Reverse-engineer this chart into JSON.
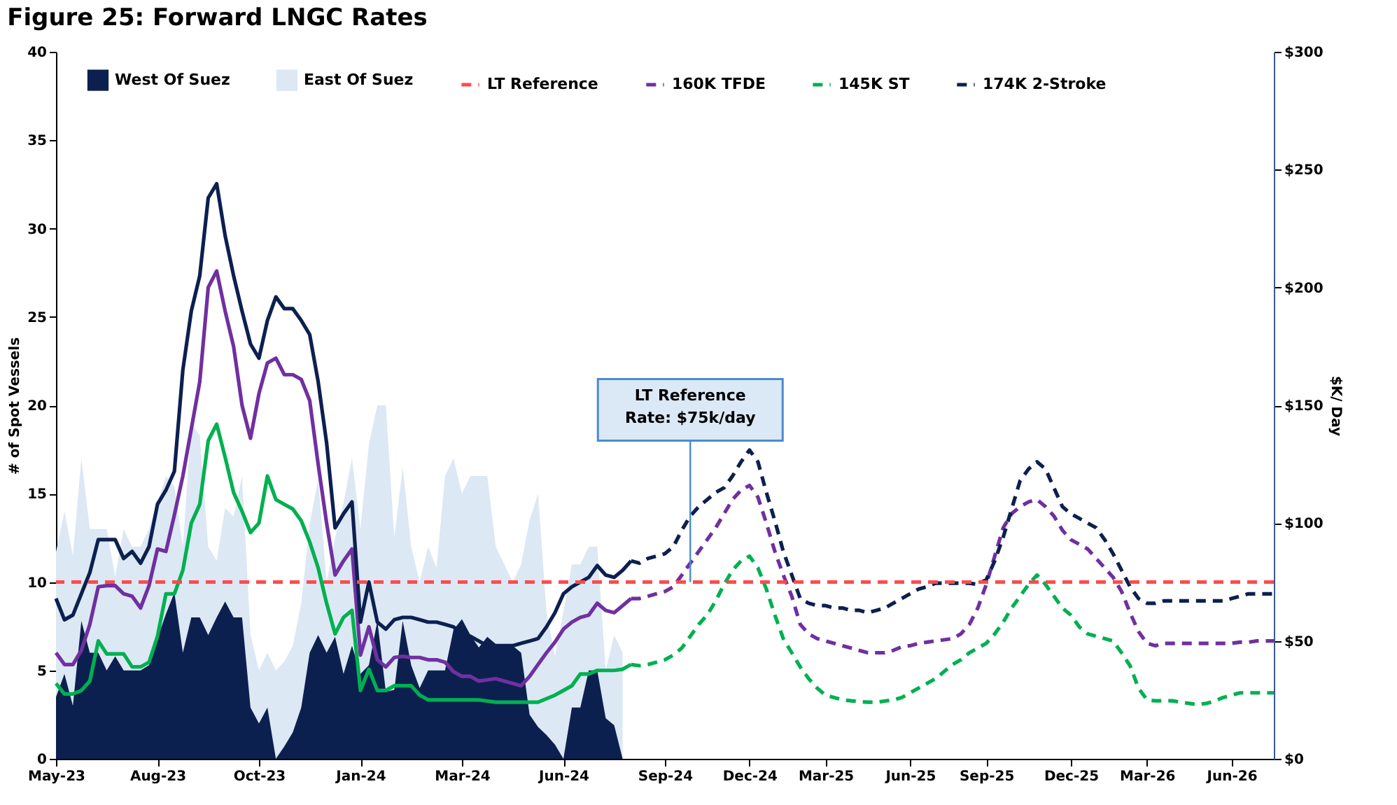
{
  "chart_data": {
    "type": "line",
    "title": "Figure 25: Forward LNGC Rates",
    "ylabel": "# of Spot Vessels",
    "y2label": "$K/ Day",
    "categories": [
      "May-23",
      null,
      null,
      null,
      null,
      null,
      null,
      null,
      null,
      null,
      null,
      null,
      "Aug-23",
      null,
      null,
      null,
      null,
      null,
      null,
      null,
      null,
      null,
      null,
      null,
      "Oct-23",
      null,
      null,
      null,
      null,
      null,
      null,
      null,
      null,
      null,
      null,
      null,
      "Jan-24",
      null,
      null,
      null,
      null,
      null,
      null,
      null,
      null,
      null,
      null,
      null,
      "Mar-24",
      null,
      null,
      null,
      null,
      null,
      null,
      null,
      null,
      null,
      null,
      null,
      "Jun-24",
      null,
      null,
      null,
      null,
      null,
      null,
      null,
      null,
      null,
      null,
      null,
      "Sep-24",
      null,
      null,
      null,
      null,
      null,
      null,
      null,
      null,
      null,
      "Dec-24",
      null,
      null,
      null,
      null,
      null,
      null,
      null,
      null,
      "Mar-25",
      null,
      null,
      null,
      null,
      null,
      null,
      null,
      null,
      null,
      "Jun-25",
      null,
      null,
      null,
      null,
      null,
      null,
      null,
      null,
      "Sep-25",
      null,
      null,
      null,
      null,
      null,
      null,
      null,
      null,
      null,
      "Dec-25",
      null,
      null,
      null,
      null,
      null,
      null,
      null,
      null,
      "Mar-26",
      null,
      null,
      null,
      null,
      null,
      null,
      null,
      null,
      null,
      "Jun-26",
      null,
      null,
      null,
      null,
      null
    ],
    "series": [
      {
        "name": "West Of Suez",
        "type": "area",
        "color": "#0c2050",
        "values": [
          3.5,
          4.8,
          3,
          7.8,
          6,
          6,
          5,
          5.8,
          5,
          5,
          5,
          5.3,
          6.8,
          8.2,
          9.4,
          6,
          8,
          8,
          7,
          8,
          8.9,
          8,
          8,
          2.9,
          2,
          2.9,
          0,
          0.7,
          1.5,
          2.9,
          6,
          7,
          6,
          6.9,
          4.8,
          6.4,
          4.8,
          5.3,
          7.8,
          3.8,
          3.9,
          7.8,
          5.3,
          4,
          5,
          5,
          5,
          7.3,
          7.9,
          7,
          6.3,
          6.9,
          6.5,
          6.4,
          6.4,
          6,
          2.5,
          1.8,
          1.35,
          0.8,
          0,
          2.9,
          2.9,
          5,
          5,
          2.3,
          1.9,
          0,
          null,
          null,
          null,
          null,
          null,
          null,
          null,
          null,
          null,
          null,
          null,
          null,
          null,
          null,
          null,
          null,
          null,
          null,
          null,
          null,
          null,
          null,
          null,
          null,
          null,
          null,
          null,
          null,
          null,
          null,
          null,
          null,
          null,
          null,
          null,
          null,
          null,
          null,
          null,
          null,
          null,
          null,
          null,
          null,
          null,
          null,
          null,
          null,
          null,
          null,
          null,
          null,
          null,
          null,
          null,
          null,
          null,
          null,
          null,
          null,
          null,
          null,
          null,
          null,
          null,
          null,
          null,
          null,
          null,
          null,
          null,
          null,
          null,
          null,
          null,
          null,
          null
        ]
      },
      {
        "name": "East Of Suez",
        "type": "area",
        "color": "#dce8f4",
        "values": [
          11.7,
          14,
          11.5,
          17,
          13,
          13,
          13,
          10.3,
          13,
          12,
          12,
          13,
          14.5,
          16,
          15.4,
          12,
          19,
          18.3,
          12,
          11.2,
          14.2,
          13.7,
          16,
          7,
          5,
          6,
          5,
          5.5,
          6.4,
          8.8,
          13.3,
          15.8,
          10,
          12.5,
          14.5,
          17,
          13,
          17.8,
          20,
          20,
          12.5,
          16.5,
          12,
          10,
          12,
          10.8,
          16,
          17,
          15,
          16,
          16,
          16,
          12,
          11,
          10,
          11,
          13.5,
          15,
          8.3,
          5.8,
          8.3,
          11,
          11,
          12,
          12,
          5,
          7,
          6,
          null,
          null,
          null,
          null,
          null,
          null,
          null,
          null,
          null,
          null,
          null,
          null,
          null,
          null,
          null,
          null,
          null,
          null,
          null,
          null,
          null,
          null,
          null,
          null,
          null,
          null,
          null,
          null,
          null,
          null,
          null,
          null,
          null,
          null,
          null,
          null,
          null,
          null,
          null,
          null,
          null,
          null,
          null,
          null,
          null,
          null,
          null,
          null,
          null,
          null,
          null,
          null,
          null,
          null,
          null,
          null,
          null,
          null,
          null,
          null,
          null,
          null,
          null,
          null,
          null,
          null,
          null,
          null,
          null,
          null,
          null,
          null,
          null,
          null,
          null,
          null,
          null
        ]
      },
      {
        "axis": "y2",
        "color": "#7030a0",
        "line_style": "solid",
        "values": [
          45,
          40,
          40,
          46,
          57,
          73,
          73.5,
          73.5,
          70,
          69,
          64,
          73.5,
          89,
          88,
          103.5,
          120,
          140,
          160,
          200,
          207,
          190,
          175,
          150,
          136,
          155,
          168,
          170,
          163,
          163,
          161,
          152,
          125,
          100,
          78,
          84,
          89,
          44,
          56,
          42,
          39,
          43,
          43.5,
          43,
          43,
          42,
          42,
          41,
          37,
          35,
          35,
          33,
          33.5,
          34,
          33,
          32,
          31,
          35,
          40,
          45,
          49.5,
          55,
          58,
          60,
          61,
          66,
          63,
          62,
          65,
          68,
          null,
          null,
          null,
          null,
          null,
          null,
          null,
          null,
          null,
          null,
          null,
          null,
          null,
          null,
          null,
          null,
          null,
          null,
          null,
          null,
          null,
          null,
          null,
          null,
          null,
          null,
          null,
          null,
          null,
          null,
          null,
          null,
          null,
          null,
          null,
          null,
          null,
          null,
          null,
          null,
          null,
          null,
          null,
          null,
          null,
          null,
          null,
          null,
          null,
          null,
          null,
          null,
          null,
          null,
          null,
          null,
          null,
          null,
          null,
          null,
          null,
          null,
          null,
          null,
          null,
          null,
          null,
          null,
          null,
          null,
          null,
          null,
          null,
          null,
          null,
          null
        ]
      },
      {
        "axis": "y2",
        "color": "#00b050",
        "line_style": "solid",
        "values": [
          32,
          27.5,
          27.5,
          29,
          33,
          50,
          44.5,
          44.5,
          44.5,
          39,
          39,
          41,
          52,
          70,
          70,
          80,
          100,
          108,
          135,
          142,
          128,
          113,
          105,
          96,
          100,
          120,
          110,
          108,
          106,
          101,
          92,
          81,
          66,
          53,
          60,
          63,
          29,
          38,
          29,
          29,
          31,
          31,
          31,
          27,
          25,
          25,
          25,
          25,
          25,
          25,
          25,
          24.5,
          24,
          24,
          24,
          24,
          24,
          24,
          25.5,
          27,
          29,
          31,
          36,
          36,
          37.5,
          37.5,
          37.5,
          38,
          40,
          null,
          null,
          null,
          null,
          null,
          null,
          null,
          null,
          null,
          null,
          null,
          null,
          null,
          null,
          null,
          null,
          null,
          null,
          null,
          null,
          null,
          null,
          null,
          null,
          null,
          null,
          null,
          null,
          null,
          null,
          null,
          null,
          null,
          null,
          null,
          null,
          null,
          null,
          null,
          null,
          null,
          null,
          null,
          null,
          null,
          null,
          null,
          null,
          null,
          null,
          null,
          null,
          null,
          null,
          null,
          null,
          null,
          null,
          null,
          null,
          null,
          null,
          null,
          null,
          null,
          null,
          null,
          null,
          null,
          null,
          null,
          null,
          null,
          null,
          null,
          null
        ]
      },
      {
        "axis": "y2",
        "color": "#0c2050",
        "line_style": "solid",
        "values": [
          68,
          59,
          61,
          70,
          79,
          93,
          93,
          93,
          85,
          88,
          83,
          90,
          108,
          114,
          122,
          165,
          190,
          205,
          238,
          244,
          222,
          205,
          190,
          176,
          170,
          186,
          196,
          191,
          191,
          186,
          180,
          160,
          134,
          98,
          104,
          109,
          58,
          75,
          58,
          55,
          59,
          60,
          60,
          59,
          58,
          58,
          57,
          56,
          53,
          52,
          50,
          48,
          48,
          48,
          48,
          49,
          50,
          51,
          56,
          62,
          70,
          73,
          75,
          77,
          82,
          78,
          77,
          80,
          84,
          null,
          null,
          null,
          null,
          null,
          null,
          null,
          null,
          null,
          null,
          null,
          null,
          null,
          null,
          null,
          null,
          null,
          null,
          null,
          null,
          null,
          null,
          null,
          null,
          null,
          null,
          null,
          null,
          null,
          null,
          null,
          null,
          null,
          null,
          null,
          null,
          null,
          null,
          null,
          null,
          null,
          null,
          null,
          null,
          null,
          null,
          null,
          null,
          null,
          null,
          null,
          null,
          null,
          null,
          null,
          null,
          null,
          null,
          null,
          null,
          null,
          null,
          null,
          null,
          null,
          null,
          null,
          null,
          null,
          null,
          null,
          null,
          null,
          null,
          null,
          null
        ]
      },
      {
        "name": "160K TFDE",
        "axis": "y2",
        "color": "#7030a0",
        "line_style": "dashed",
        "values": [
          null,
          null,
          null,
          null,
          null,
          null,
          null,
          null,
          null,
          null,
          null,
          null,
          null,
          null,
          null,
          null,
          null,
          null,
          null,
          null,
          null,
          null,
          null,
          null,
          null,
          null,
          null,
          null,
          null,
          null,
          null,
          null,
          null,
          null,
          null,
          null,
          null,
          null,
          null,
          null,
          null,
          null,
          null,
          null,
          null,
          null,
          null,
          null,
          null,
          null,
          null,
          null,
          null,
          null,
          null,
          null,
          null,
          null,
          null,
          null,
          null,
          null,
          null,
          null,
          null,
          null,
          null,
          null,
          68,
          68,
          69,
          70,
          71,
          73,
          78,
          83,
          88,
          93,
          98,
          104,
          110,
          114,
          116,
          111,
          100,
          88,
          78,
          69,
          57,
          53,
          51,
          50,
          49,
          48,
          47,
          46,
          45,
          45,
          45,
          46,
          47.5,
          48,
          49,
          49.5,
          50,
          50.5,
          51,
          53,
          57,
          64,
          74,
          86,
          98,
          104,
          107,
          109,
          110,
          107,
          103,
          97,
          93,
          91,
          89,
          85,
          81,
          77,
          71,
          62,
          54,
          49,
          48,
          49,
          49,
          49,
          49,
          49,
          49,
          49,
          49,
          49,
          49.5,
          49.5,
          50,
          50,
          50
        ]
      },
      {
        "name": "145K ST",
        "axis": "y2",
        "color": "#00b050",
        "line_style": "dashed",
        "values": [
          null,
          null,
          null,
          null,
          null,
          null,
          null,
          null,
          null,
          null,
          null,
          null,
          null,
          null,
          null,
          null,
          null,
          null,
          null,
          null,
          null,
          null,
          null,
          null,
          null,
          null,
          null,
          null,
          null,
          null,
          null,
          null,
          null,
          null,
          null,
          null,
          null,
          null,
          null,
          null,
          null,
          null,
          null,
          null,
          null,
          null,
          null,
          null,
          null,
          null,
          null,
          null,
          null,
          null,
          null,
          null,
          null,
          null,
          null,
          null,
          null,
          null,
          null,
          null,
          null,
          null,
          null,
          null,
          40,
          39.5,
          40,
          41,
          42,
          44,
          47,
          52,
          57,
          61,
          67,
          74,
          80,
          84,
          86,
          81,
          72,
          61,
          51,
          45,
          39,
          34,
          30,
          27,
          26,
          25,
          24.6,
          24.3,
          24,
          24,
          24.5,
          25,
          26,
          28,
          30,
          32,
          34,
          37,
          40,
          42,
          45,
          47,
          49,
          53,
          58,
          64,
          69,
          74,
          78,
          74,
          69,
          64,
          61,
          56,
          53,
          52,
          51,
          50,
          45,
          39.5,
          30,
          25,
          24.6,
          24.6,
          24.6,
          24,
          23.5,
          23,
          23.5,
          24.5,
          26,
          27,
          28,
          28,
          28,
          28,
          28
        ]
      },
      {
        "name": "174K 2-Stroke",
        "axis": "y2",
        "color": "#0c2050",
        "line_style": "dashed",
        "values": [
          null,
          null,
          null,
          null,
          null,
          null,
          null,
          null,
          null,
          null,
          null,
          null,
          null,
          null,
          null,
          null,
          null,
          null,
          null,
          null,
          null,
          null,
          null,
          null,
          null,
          null,
          null,
          null,
          null,
          null,
          null,
          null,
          null,
          null,
          null,
          null,
          null,
          null,
          null,
          null,
          null,
          null,
          null,
          null,
          null,
          null,
          null,
          null,
          null,
          null,
          null,
          null,
          null,
          null,
          null,
          null,
          null,
          null,
          null,
          null,
          null,
          null,
          null,
          null,
          null,
          null,
          null,
          null,
          84,
          83,
          85,
          86,
          87,
          90,
          97,
          103,
          107,
          110,
          113,
          115,
          120,
          126,
          131,
          126,
          113,
          101,
          88,
          78,
          68,
          66,
          65,
          65,
          64,
          64,
          63,
          63,
          62,
          63,
          64,
          66,
          68,
          70,
          72,
          73,
          74.5,
          74.5,
          74.5,
          74.5,
          74.5,
          74,
          76,
          84,
          94,
          106,
          118,
          123,
          126,
          123,
          115,
          107,
          104,
          102,
          100,
          98,
          93,
          87,
          80,
          73,
          68,
          66,
          66,
          67,
          67,
          67,
          67,
          67,
          67,
          67,
          67,
          68,
          69,
          70,
          70,
          70,
          70
        ]
      }
    ],
    "ylim": [
      0,
      40
    ],
    "yticks": [
      0,
      5,
      10,
      15,
      20,
      25,
      30,
      35,
      40
    ],
    "y2lim": [
      0,
      300
    ],
    "y2ticks": [
      {
        "value": 0,
        "label": "$0"
      },
      {
        "value": 50,
        "label": "$50"
      },
      {
        "value": 100,
        "label": "$100"
      },
      {
        "value": 150,
        "label": "$150"
      },
      {
        "value": 200,
        "label": "$200"
      },
      {
        "value": 250,
        "label": "$250"
      },
      {
        "value": 300,
        "label": "$300"
      }
    ],
    "ref_lines": [
      {
        "axis": "y2",
        "value": 75,
        "label": "LT Reference",
        "color": "#ff4b4b",
        "line_style": "dashed"
      }
    ],
    "annotations": [
      {
        "text": "LT Reference\nRate: $75k/day",
        "y": 10
      }
    ],
    "legend": "top"
  }
}
